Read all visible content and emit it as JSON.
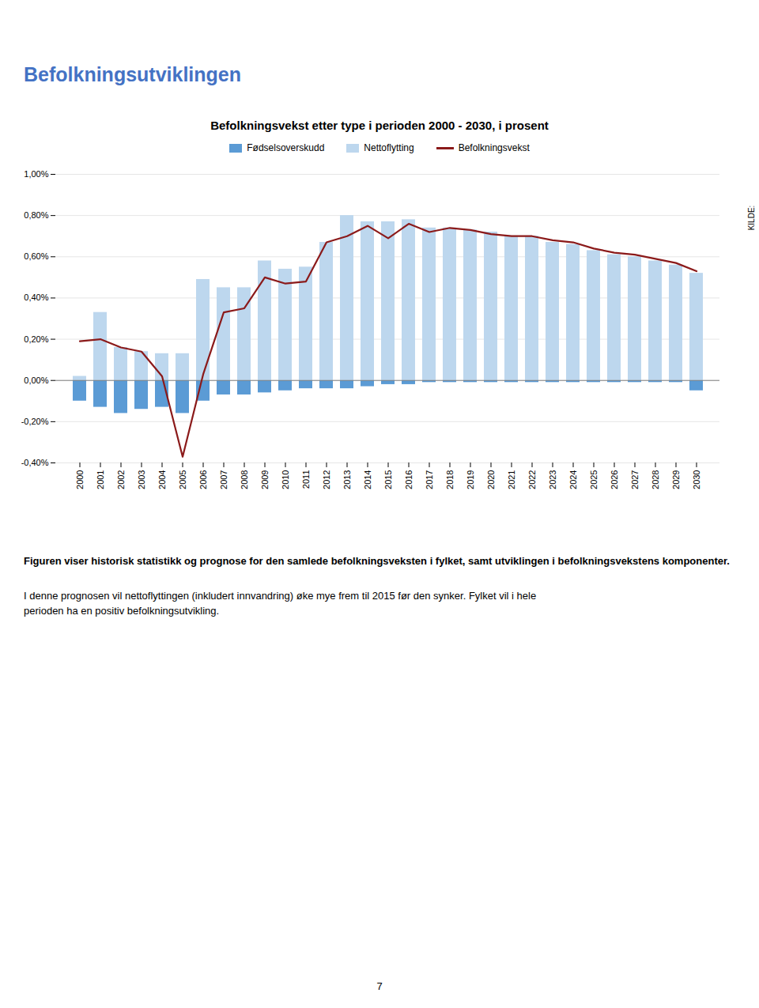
{
  "chart_data": {
    "type": "bar",
    "title": "Befolkningsvekst etter type i perioden 2000 - 2030, i prosent",
    "annotations": [
      "Befolkningsutviklingen",
      "KILDE:",
      "Figuren viser historisk statistikk og prognose for den samlede befolkningsveksten i fylket, samt utviklingen i befolkningsvekstens komponenter.",
      "I denne prognosen vil nettoflyttingen (inkludert innvandring) øke mye frem til 2015 før den synker. Fylket vil i hele",
      "perioden ha en positiv befolkningsutvikling.",
      "7"
    ],
    "categories": [
      2000,
      2001,
      2002,
      2003,
      2004,
      2005,
      2006,
      2007,
      2008,
      2009,
      2010,
      2011,
      2012,
      2013,
      2014,
      2015,
      2016,
      2017,
      2018,
      2019,
      2020,
      2021,
      2022,
      2023,
      2024,
      2025,
      2026,
      2027,
      2028,
      2029,
      2030
    ],
    "series": [
      {
        "name": "Fødselsoverskudd",
        "type": "bar",
        "color": "#5B9BD5",
        "values": [
          -0.1,
          -0.13,
          -0.16,
          -0.14,
          -0.13,
          -0.16,
          -0.1,
          -0.07,
          -0.07,
          -0.06,
          -0.05,
          -0.04,
          -0.04,
          -0.04,
          -0.03,
          -0.02,
          -0.02,
          -0.01,
          -0.01,
          -0.01,
          -0.01,
          -0.01,
          -0.01,
          -0.01,
          -0.01,
          -0.01,
          -0.01,
          -0.01,
          -0.01,
          -0.01,
          -0.05
        ]
      },
      {
        "name": "Nettoflytting",
        "type": "bar",
        "color": "#BDD7EE",
        "values": [
          0.02,
          0.33,
          0.16,
          0.14,
          0.13,
          0.13,
          0.49,
          0.45,
          0.45,
          0.58,
          0.54,
          0.55,
          0.67,
          0.8,
          0.77,
          0.77,
          0.78,
          0.74,
          0.74,
          0.73,
          0.72,
          0.7,
          0.7,
          0.67,
          0.66,
          0.63,
          0.61,
          0.6,
          0.58,
          0.56,
          0.52
        ]
      },
      {
        "name": "Befolkningsvekst",
        "type": "line",
        "color": "#8B1A1A",
        "values": [
          0.19,
          0.2,
          0.16,
          0.14,
          0.02,
          -0.37,
          0.03,
          0.33,
          0.35,
          0.5,
          0.47,
          0.48,
          0.67,
          0.7,
          0.75,
          0.69,
          0.76,
          0.72,
          0.74,
          0.73,
          0.71,
          0.7,
          0.7,
          0.68,
          0.67,
          0.64,
          0.62,
          0.61,
          0.59,
          0.57,
          0.53
        ]
      }
    ],
    "ylim": [
      -0.4,
      1.0
    ],
    "yticks": [
      {
        "value": -0.4,
        "label": "-0,40%"
      },
      {
        "value": -0.2,
        "label": "-0,20%"
      },
      {
        "value": 0.0,
        "label": "0,00%"
      },
      {
        "value": 0.2,
        "label": "0,20%"
      },
      {
        "value": 0.4,
        "label": "0,40%"
      },
      {
        "value": 0.6,
        "label": "0,60%"
      },
      {
        "value": 0.8,
        "label": "0,80%"
      },
      {
        "value": 1.0,
        "label": "1,00%"
      }
    ],
    "grid": true,
    "legend": "top",
    "stacked": false
  }
}
